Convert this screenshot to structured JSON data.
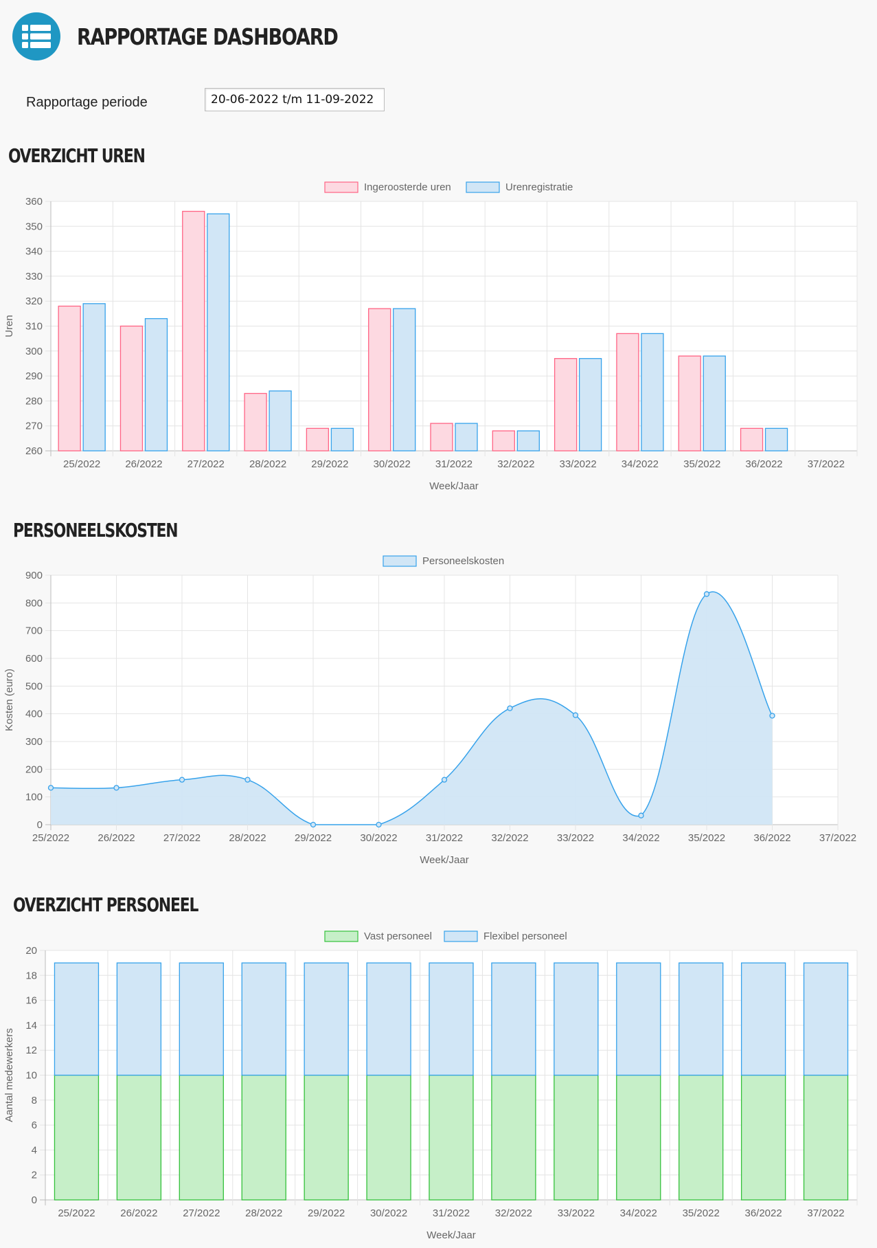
{
  "header": {
    "title": "RAPPORTAGE DASHBOARD",
    "logo_icon": "list-icon"
  },
  "period": {
    "label": "Rapportage periode",
    "value": "20-06-2022 t/m 11-09-2022"
  },
  "sections": {
    "uren": "OVERZICHT UREN",
    "kosten": "PERSONEELSKOSTEN",
    "personeel": "OVERZICHT PERSONEEL"
  },
  "chart_data": [
    {
      "id": "uren",
      "type": "bar",
      "title": "OVERZICHT UREN",
      "xlabel": "Week/Jaar",
      "ylabel": "Uren",
      "ylim": [
        260,
        360
      ],
      "ystep": 10,
      "grid": true,
      "legend": "top",
      "categories": [
        "25/2022",
        "26/2022",
        "27/2022",
        "28/2022",
        "29/2022",
        "30/2022",
        "31/2022",
        "32/2022",
        "33/2022",
        "34/2022",
        "35/2022",
        "36/2022",
        "37/2022"
      ],
      "series": [
        {
          "name": "Ingeroosterde uren",
          "color": "#ff6384",
          "fill": "#fdd9e1",
          "values": [
            318,
            310,
            356,
            283,
            269,
            317,
            271,
            268,
            297,
            307,
            298,
            269,
            null
          ]
        },
        {
          "name": "Urenregistratie",
          "color": "#36a2eb",
          "fill": "#d1e6f6",
          "values": [
            319,
            313,
            355,
            284,
            269,
            317,
            271,
            268,
            297,
            307,
            298,
            269,
            null
          ]
        }
      ]
    },
    {
      "id": "kosten",
      "type": "area",
      "title": "PERSONEELSKOSTEN",
      "xlabel": "Week/Jaar",
      "ylabel": "Kosten (euro)",
      "ylim": [
        0,
        900
      ],
      "ystep": 100,
      "grid": true,
      "legend": "top",
      "categories": [
        "25/2022",
        "26/2022",
        "27/2022",
        "28/2022",
        "29/2022",
        "30/2022",
        "31/2022",
        "32/2022",
        "33/2022",
        "34/2022",
        "35/2022",
        "36/2022",
        "37/2022"
      ],
      "series": [
        {
          "name": "Personeelskosten",
          "color": "#36a2eb",
          "fill": "#d1e6f6",
          "values": [
            133,
            133,
            162,
            162,
            0,
            0,
            162,
            420,
            395,
            33,
            832,
            393,
            null
          ]
        }
      ]
    },
    {
      "id": "personeel",
      "type": "bar",
      "stacked": true,
      "title": "OVERZICHT PERSONEEL",
      "xlabel": "Week/Jaar",
      "ylabel": "Aantal medewerkers",
      "ylim": [
        0,
        20
      ],
      "ystep": 2,
      "grid": true,
      "legend": "top",
      "categories": [
        "25/2022",
        "26/2022",
        "27/2022",
        "28/2022",
        "29/2022",
        "30/2022",
        "31/2022",
        "32/2022",
        "33/2022",
        "34/2022",
        "35/2022",
        "36/2022",
        "37/2022"
      ],
      "series": [
        {
          "name": "Vast personeel",
          "color": "#34c13b",
          "fill": "#c6efc8",
          "values": [
            10,
            10,
            10,
            10,
            10,
            10,
            10,
            10,
            10,
            10,
            10,
            10,
            10
          ]
        },
        {
          "name": "Flexibel personeel",
          "color": "#36a2eb",
          "fill": "#d1e6f6",
          "values": [
            9,
            9,
            9,
            9,
            9,
            9,
            9,
            9,
            9,
            9,
            9,
            9,
            9
          ]
        }
      ]
    }
  ]
}
